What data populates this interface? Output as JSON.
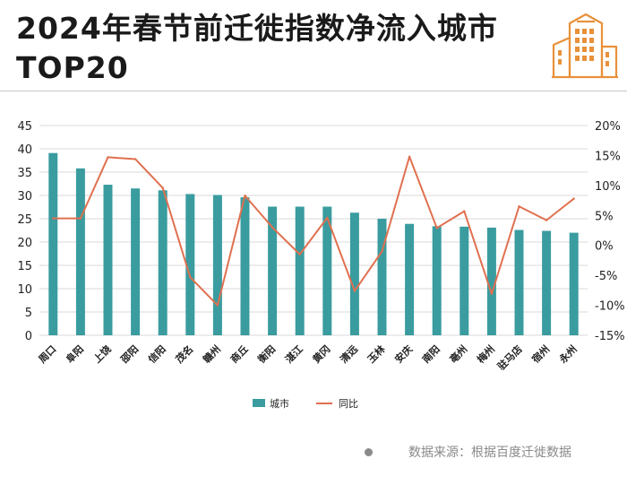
{
  "header": {
    "title_line1": "2024年春节前迁徙指数净流入城市",
    "title_line2": "TOP20"
  },
  "logo": {
    "icon": "city-buildings-icon",
    "color": "#e8913a"
  },
  "footer": {
    "source": "数据来源：根据百度迁徙数据"
  },
  "colors": {
    "bar": "#3a9c9f",
    "line": "#e0704f",
    "grid": "#d9d9d9"
  },
  "chart_data": {
    "type": "bar",
    "categories": [
      "周口",
      "阜阳",
      "上饶",
      "邵阳",
      "信阳",
      "茂名",
      "赣州",
      "商丘",
      "衡阳",
      "湛江",
      "黄冈",
      "清远",
      "玉林",
      "安庆",
      "南阳",
      "亳州",
      "梅州",
      "驻马店",
      "宿州",
      "永州"
    ],
    "series": [
      {
        "name": "城市",
        "type": "bar",
        "axis": "left",
        "values": [
          39.1,
          35.8,
          32.3,
          31.5,
          31.1,
          30.3,
          30.1,
          29.6,
          27.6,
          27.6,
          27.6,
          26.3,
          25.0,
          23.9,
          23.4,
          23.3,
          23.1,
          22.6,
          22.4,
          22.0
        ]
      },
      {
        "name": "同比",
        "type": "line",
        "axis": "right",
        "values": [
          4.5,
          4.5,
          14.7,
          14.4,
          9.6,
          -5.3,
          -10.0,
          8.3,
          3.0,
          -1.5,
          4.6,
          -7.6,
          -1.0,
          14.8,
          2.9,
          5.7,
          -8.1,
          6.5,
          4.2,
          7.8
        ]
      }
    ],
    "y_left": {
      "ylim": [
        0,
        45
      ],
      "ticks": [
        "0",
        "5",
        "10",
        "15",
        "20",
        "25",
        "30",
        "35",
        "40",
        "45"
      ]
    },
    "y_right": {
      "ylim": [
        -15,
        20
      ],
      "ticks": [
        "-15%",
        "-10%",
        "-5%",
        "0%",
        "5%",
        "10%",
        "15%",
        "20%"
      ]
    },
    "grid": true,
    "legend": {
      "placement": "bottom",
      "entries": [
        "城市",
        "同比"
      ]
    }
  }
}
